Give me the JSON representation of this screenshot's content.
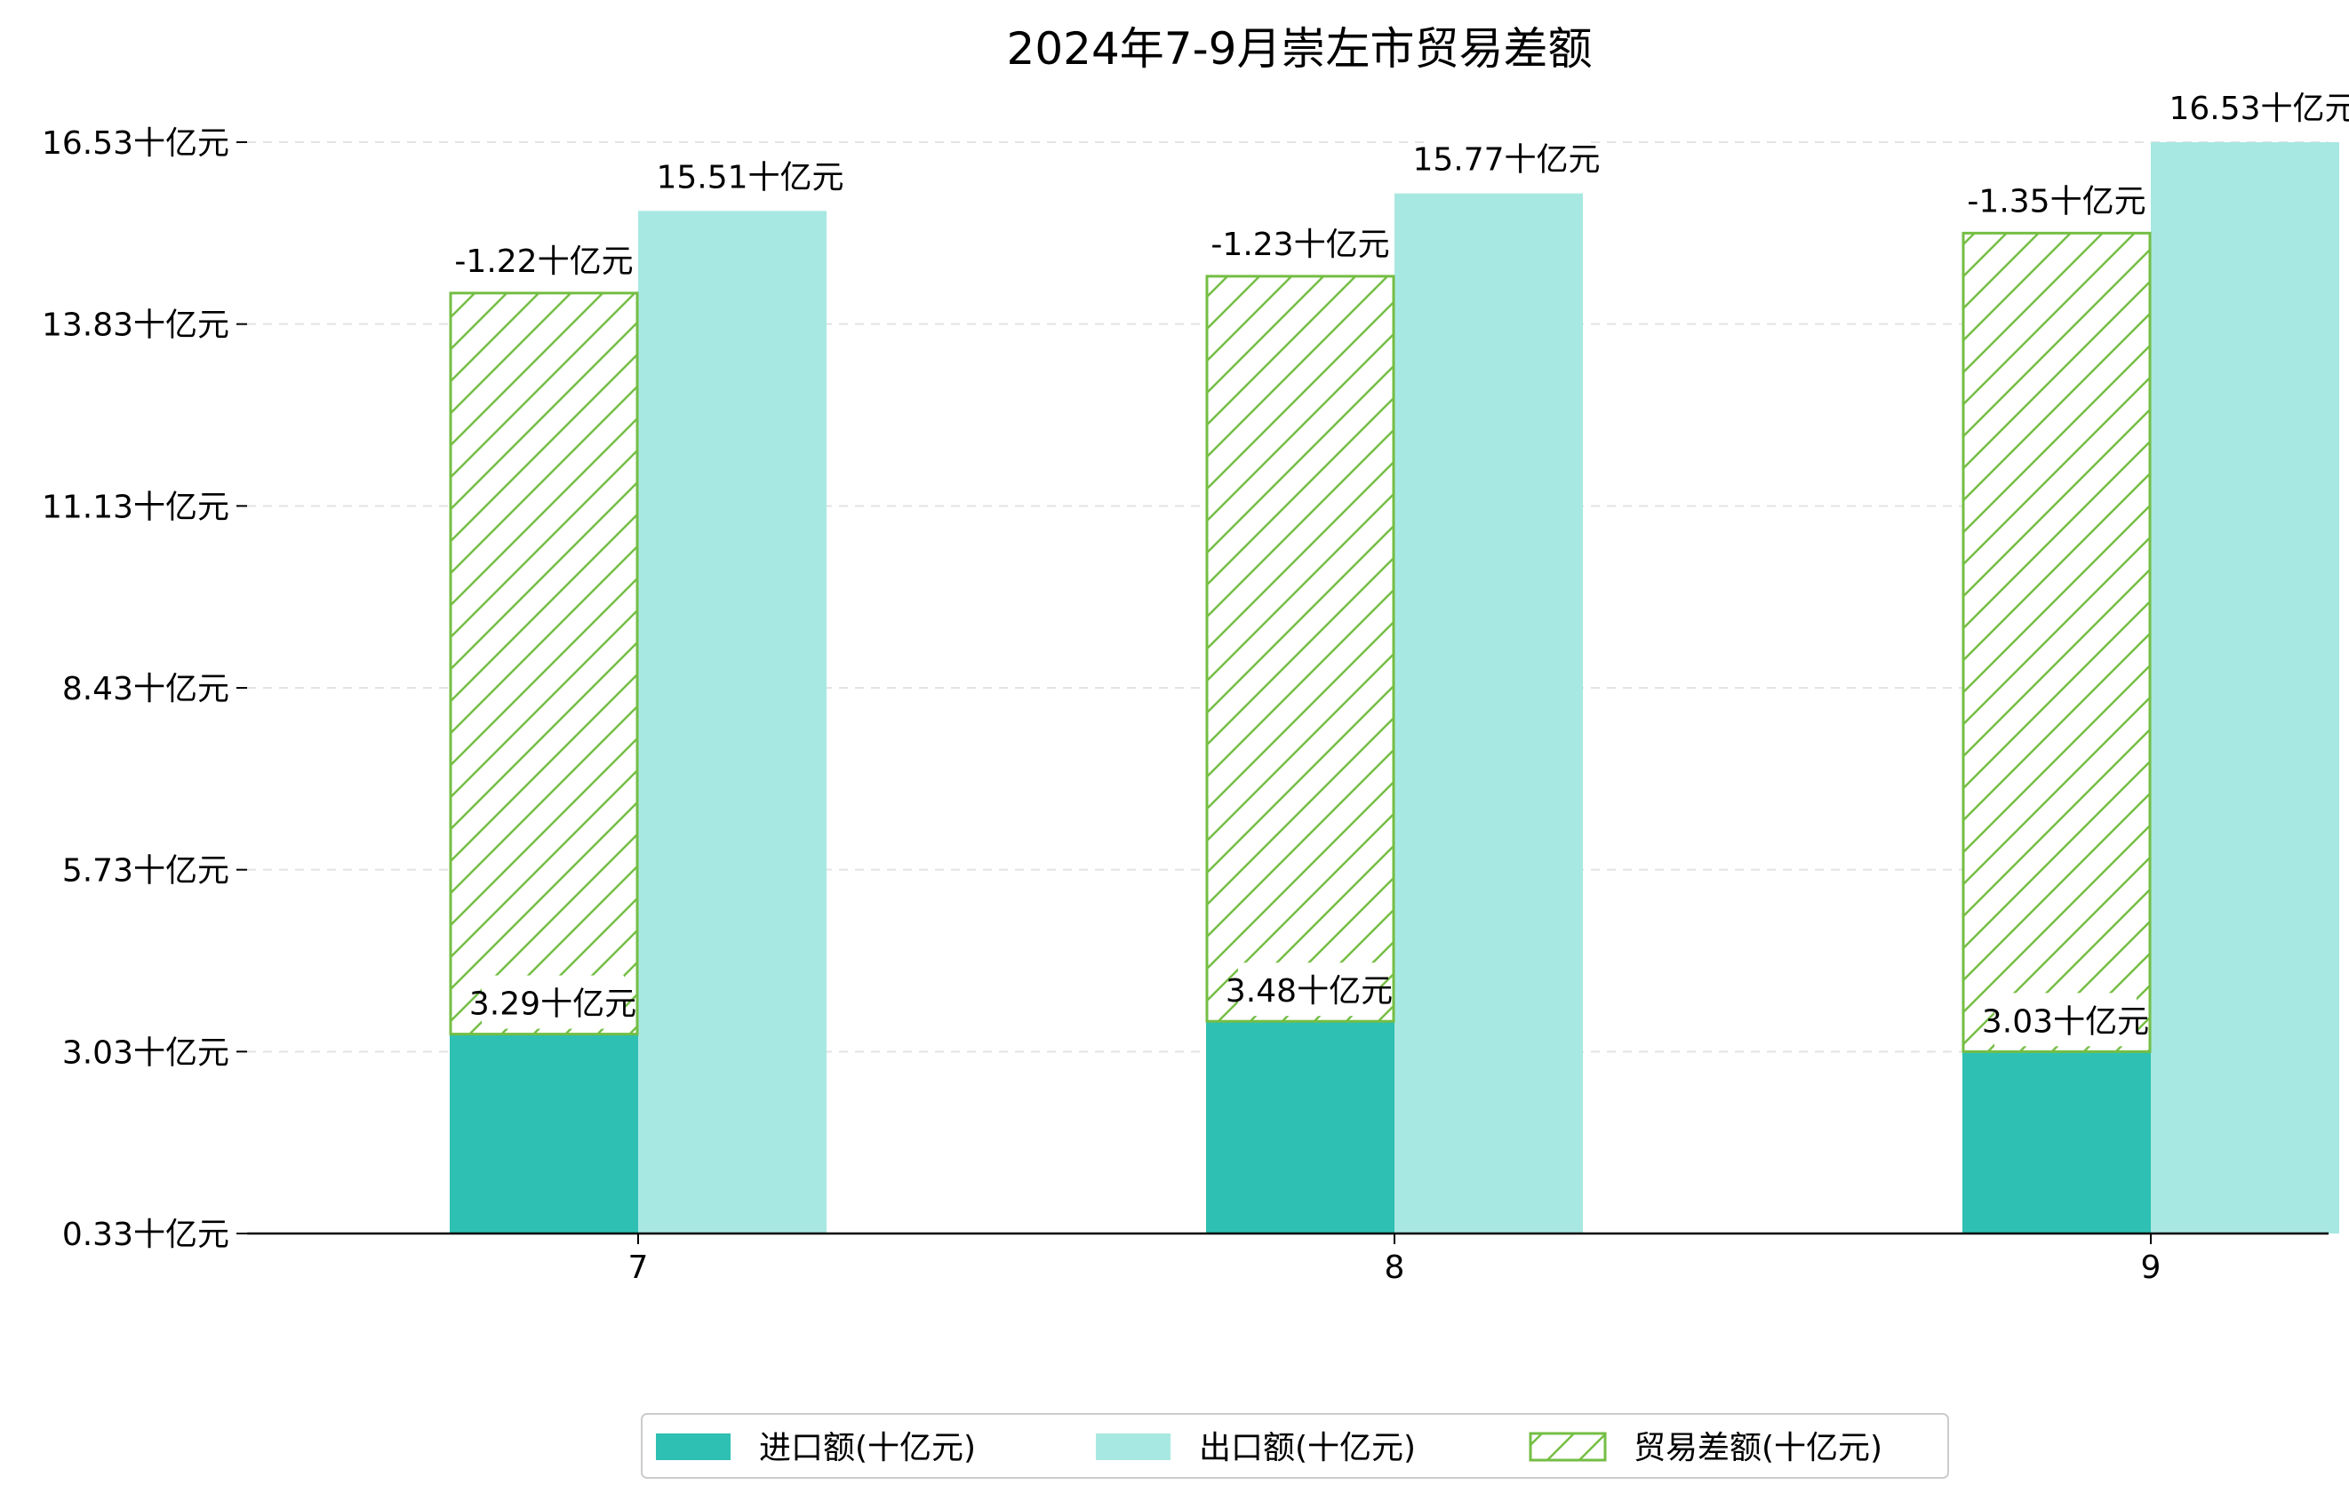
{
  "chart_data": {
    "type": "bar",
    "title": "2024年7-9月崇左市贸易差额",
    "xlabel": "",
    "ylabel": "",
    "categories": [
      "7",
      "8",
      "9"
    ],
    "series": [
      {
        "name": "进口额(十亿元)",
        "values": [
          3.29,
          3.48,
          3.03
        ],
        "labels": [
          "3.29十亿元",
          "3.48十亿元",
          "3.03十亿元"
        ],
        "color": "#2EC0B3"
      },
      {
        "name": "出口额(十亿元)",
        "values": [
          15.51,
          15.77,
          16.53
        ],
        "labels": [
          "15.51十亿元",
          "15.77十亿元",
          "16.53十亿元"
        ],
        "color": "#A8E8E2"
      },
      {
        "name": "贸易差额(十亿元)",
        "values": [
          -1.22,
          -1.23,
          -1.35
        ],
        "labels": [
          "-1.22十亿元",
          "-1.23十亿元",
          "-1.35十亿元"
        ],
        "color": "#74BE44",
        "hatch": true
      }
    ],
    "yticks": [
      "0.33十亿元",
      "3.03十亿元",
      "5.73十亿元",
      "8.43十亿元",
      "11.13十亿元",
      "13.83十亿元",
      "16.53十亿元"
    ],
    "ylim": [
      0.33,
      16.53
    ],
    "grid": "horizontal-dashed",
    "legend_position": "bottom-center"
  }
}
